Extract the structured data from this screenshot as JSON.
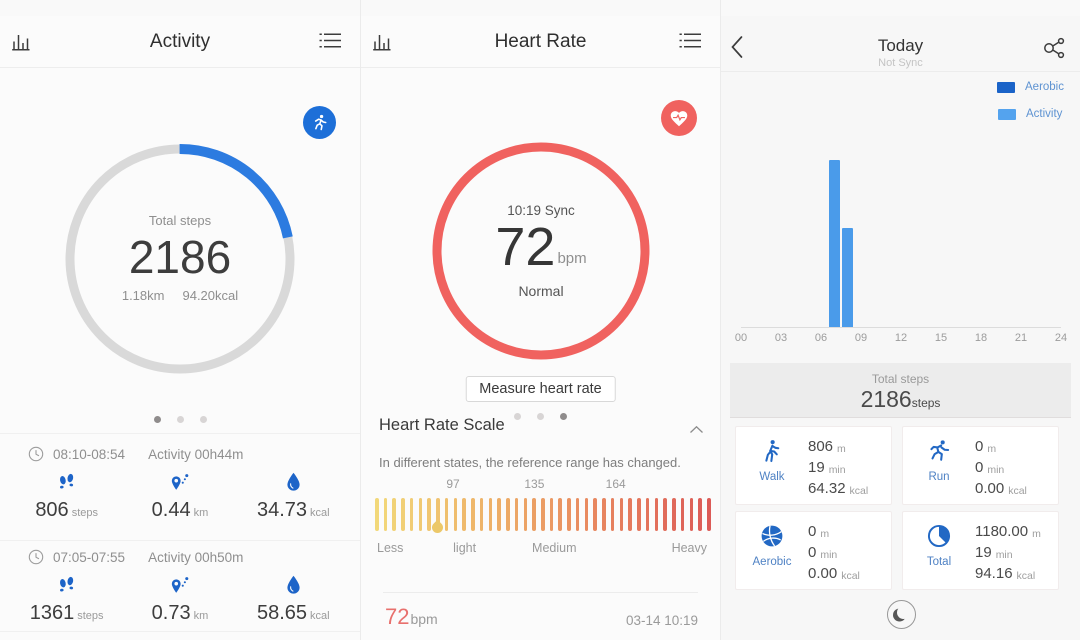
{
  "colors": {
    "activity_blue": "#1d6fd8",
    "icon_blue": "#1d64c8",
    "bar_blue": "#4a9bea",
    "aerobic_legend_blue": "#1a63c8",
    "activity_legend_blue": "#54a3ee",
    "heart_salmon": "#f0625f",
    "text_dark": "#3a3a3a",
    "text_gray": "#949494"
  },
  "icons": [
    "bar-chart-icon",
    "list-menu-icon",
    "runner-badge-icon",
    "clock-icon",
    "footprints-icon",
    "route-pin-icon",
    "calorie-drop-icon",
    "heart-pulse-badge-icon",
    "chevron-up-icon",
    "scale-drop-marker-icon",
    "back-icon",
    "share-icon",
    "walk-icon",
    "run-icon",
    "aerobic-ball-icon",
    "total-pie-icon",
    "moon-icon",
    "page-dot"
  ],
  "activity_screen": {
    "title": "Activity",
    "ring": {
      "label": "Total steps",
      "value": "2186",
      "distance": "1.18km",
      "calories": "94.20kcal",
      "progress_pct": 21.86
    },
    "pager": {
      "count": 3,
      "active": 0
    },
    "entries": [
      {
        "time_range": "08:10-08:54",
        "duration": "Activity 00h44m",
        "stats": [
          {
            "value": "806",
            "unit": "steps"
          },
          {
            "value": "0.44",
            "unit": "km"
          },
          {
            "value": "34.73",
            "unit": "kcal"
          }
        ]
      },
      {
        "time_range": "07:05-07:55",
        "duration": "Activity 00h50m",
        "stats": [
          {
            "value": "1361",
            "unit": "steps"
          },
          {
            "value": "0.73",
            "unit": "km"
          },
          {
            "value": "58.65",
            "unit": "kcal"
          }
        ]
      }
    ]
  },
  "heart_screen": {
    "title": "Heart Rate",
    "ring": {
      "sync_label": "10:19 Sync",
      "value": "72",
      "unit": "bpm",
      "status": "Normal"
    },
    "measure_button_label": "Measure heart rate",
    "pager": {
      "count": 3,
      "active": 2
    },
    "scale": {
      "heading": "Heart Rate Scale",
      "description": "In different states, the reference range has changed.",
      "thresholds": [
        {
          "value": "97",
          "pos_pct": 23.5
        },
        {
          "value": "135",
          "pos_pct": 48
        },
        {
          "value": "164",
          "pos_pct": 72.5
        }
      ],
      "zones": [
        {
          "label": "Less",
          "pos_pct": 0
        },
        {
          "label": "light",
          "pos_pct": 27
        },
        {
          "label": "Medium",
          "pos_pct": 54
        },
        {
          "label": "Heavy",
          "pos_pct": 100
        }
      ],
      "gradient": [
        "#f2d879",
        "#eeb268",
        "#e8865f",
        "#dc5b57"
      ],
      "tick_count": 39,
      "marker_pos_pct": 18.7
    },
    "record": {
      "value": "72",
      "unit": "bpm",
      "timestamp": "03-14 10:19"
    }
  },
  "today_screen": {
    "title": "Today",
    "subtitle": "Not Sync",
    "legend": [
      {
        "label": "Aerobic",
        "color": "#1a63c8"
      },
      {
        "label": "Activity",
        "color": "#54a3ee"
      }
    ],
    "chart_data": {
      "type": "bar",
      "x_ticks": [
        "00",
        "03",
        "06",
        "09",
        "12",
        "15",
        "18",
        "21",
        "24"
      ],
      "ylim": [
        0,
        1450
      ],
      "grid": false,
      "legend_position": "top-right",
      "series": [
        {
          "name": "Activity",
          "color": "#4a9bea",
          "points": [
            {
              "hour": 7,
              "value": 1361
            },
            {
              "hour": 8,
              "value": 806
            }
          ]
        }
      ]
    },
    "total_banner": {
      "label": "Total steps",
      "value": "2186",
      "unit": "steps"
    },
    "cards": [
      {
        "name": "Walk",
        "icon": "walk-icon",
        "rows": [
          {
            "value": "806",
            "unit": "m"
          },
          {
            "value": "19",
            "unit": "min"
          },
          {
            "value": "64.32",
            "unit": "kcal"
          }
        ]
      },
      {
        "name": "Run",
        "icon": "run-icon",
        "rows": [
          {
            "value": "0",
            "unit": "m"
          },
          {
            "value": "0",
            "unit": "min"
          },
          {
            "value": "0.00",
            "unit": "kcal"
          }
        ]
      },
      {
        "name": "Aerobic",
        "icon": "aerobic-ball-icon",
        "rows": [
          {
            "value": "0",
            "unit": "m"
          },
          {
            "value": "0",
            "unit": "min"
          },
          {
            "value": "0.00",
            "unit": "kcal"
          }
        ]
      },
      {
        "name": "Total",
        "icon": "total-pie-icon",
        "rows": [
          {
            "value": "1180.00",
            "unit": "m"
          },
          {
            "value": "19",
            "unit": "min"
          },
          {
            "value": "94.16",
            "unit": "kcal"
          }
        ]
      }
    ]
  }
}
